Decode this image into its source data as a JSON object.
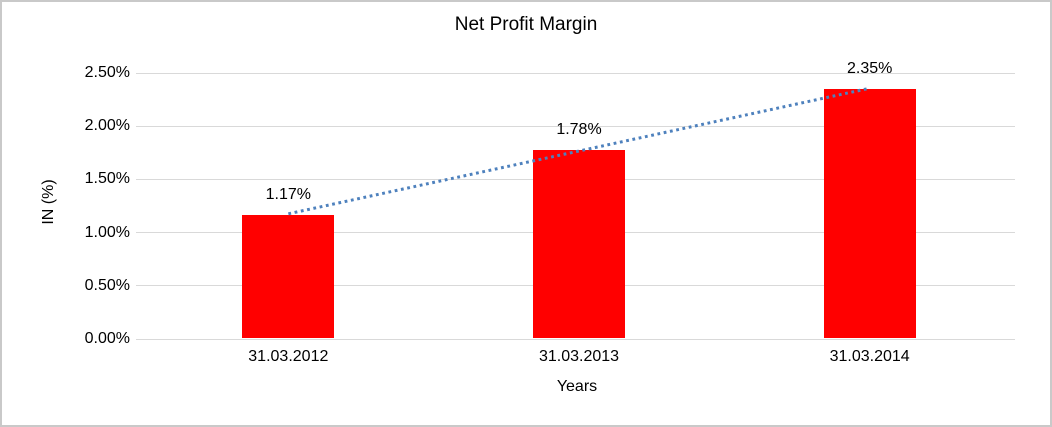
{
  "chart_data": {
    "type": "bar",
    "title": "Net Profit Margin",
    "xlabel": "Years",
    "ylabel": "IN (%)",
    "categories": [
      "31.03.2012",
      "31.03.2013",
      "31.03.2014"
    ],
    "values": [
      1.17,
      1.78,
      2.35
    ],
    "data_labels": [
      "1.17%",
      "1.78%",
      "2.35%"
    ],
    "y_ticks": [
      "0.00%",
      "0.50%",
      "1.00%",
      "1.50%",
      "2.00%",
      "2.50%"
    ],
    "ylim": [
      0,
      2.5
    ],
    "grid": "horizontal",
    "legend": "none",
    "bar_color": "#ff0000",
    "gridline_color": "#d9d9d9",
    "trendline": {
      "type": "linear",
      "style": "dotted",
      "color": "#4e81bd"
    }
  }
}
